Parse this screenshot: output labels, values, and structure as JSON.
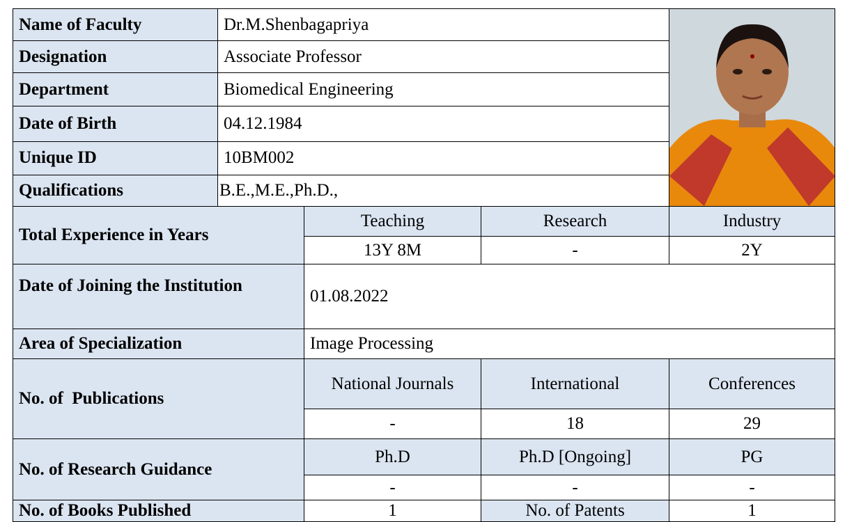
{
  "profile": {
    "rows": [
      {
        "label": "Name of Faculty",
        "value": "Dr.M.Shenbagapriya"
      },
      {
        "label": "Designation",
        "value": "Associate Professor"
      },
      {
        "label": "Department",
        "value": "Biomedical Engineering"
      },
      {
        "label": "Date of Birth",
        "value": "04.12.1984"
      },
      {
        "label": "Unique ID",
        "value": "10BM002"
      },
      {
        "label": "Qualifications",
        "value": "B.E.,M.E.,Ph.D.,"
      }
    ]
  },
  "experience": {
    "label": "Total Experience in Years",
    "headers": [
      "Teaching",
      "Research",
      "Industry"
    ],
    "values": [
      "13Y 8M",
      "-",
      "2Y"
    ]
  },
  "joining": {
    "label": "Date of Joining the Institution",
    "value": "01.08.2022"
  },
  "specialization": {
    "label": "Area of Specialization",
    "value": "Image Processing"
  },
  "publications": {
    "label": "No. of  Publications",
    "headers": [
      "National Journals",
      "International",
      "Conferences"
    ],
    "values": [
      "-",
      "18",
      "29"
    ]
  },
  "guidance": {
    "label": "No. of Research Guidance",
    "headers": [
      "Ph.D",
      "Ph.D [Ongoing]",
      "PG"
    ],
    "values": [
      "-",
      "-",
      "-"
    ]
  },
  "books": {
    "label": "No. of Books Published",
    "value": "1",
    "patents_label": "No. of Patents",
    "patents_value": "1"
  }
}
